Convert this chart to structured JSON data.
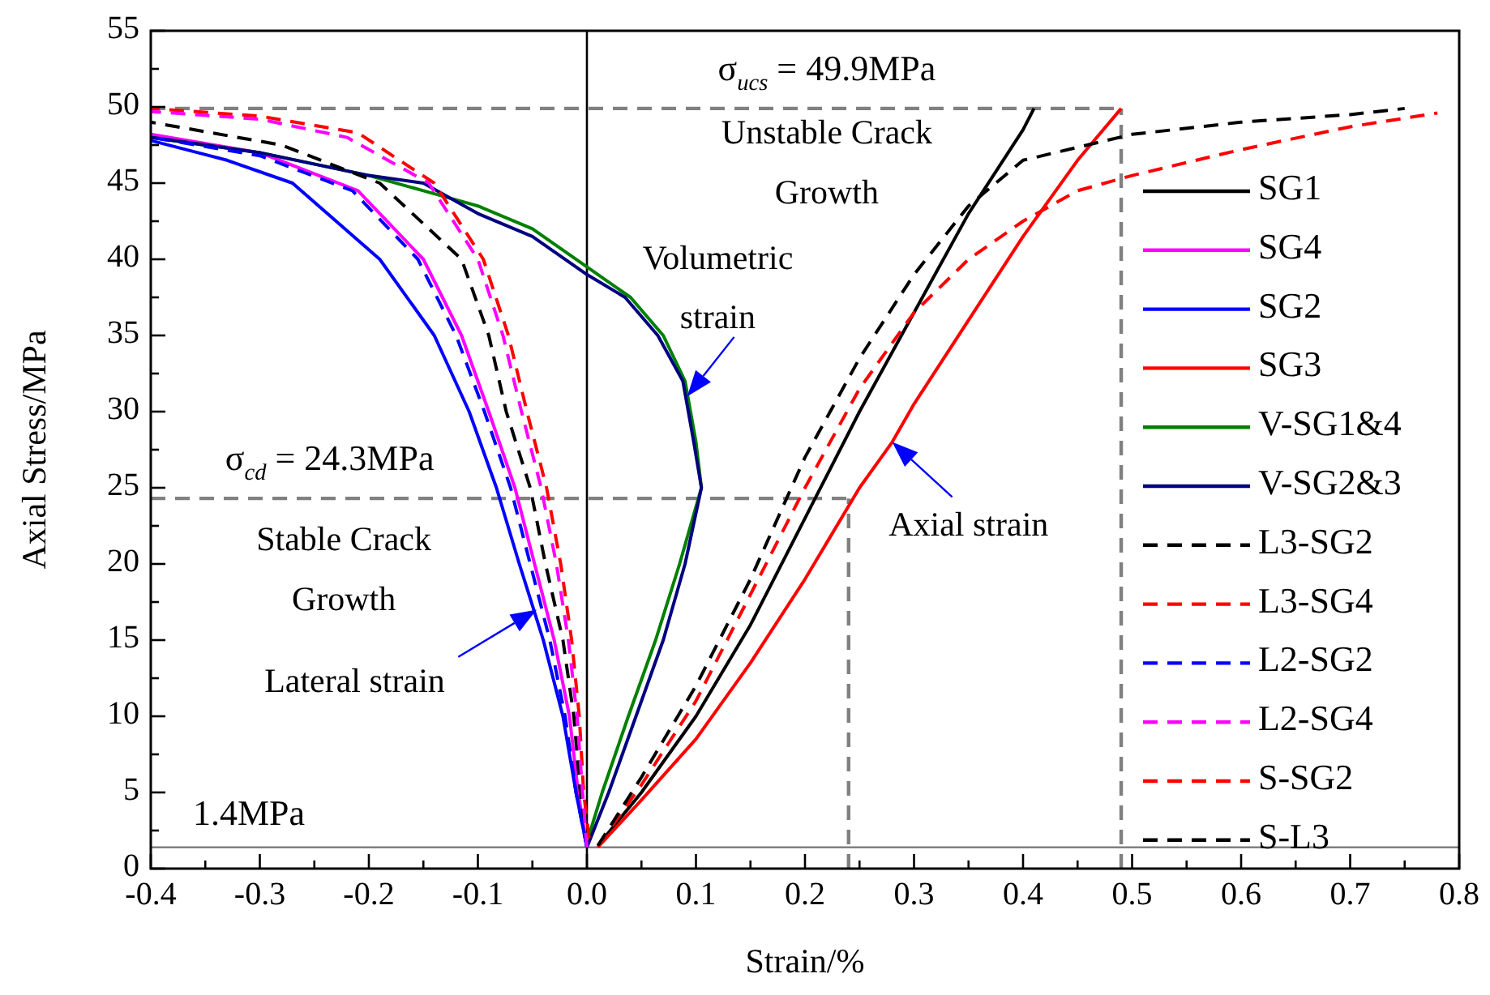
{
  "chart_data": {
    "type": "line",
    "xlabel": "Strain/%",
    "ylabel": "Axial Stress/MPa",
    "xlim": [
      -0.4,
      0.8
    ],
    "ylim": [
      0,
      55
    ],
    "xticks": [
      -0.4,
      {
        "value": -0.35,
        "label": null
      },
      -0.3,
      {
        "value": -0.25,
        "label": null
      },
      -0.2,
      {
        "value": -0.15,
        "label": null
      },
      -0.1,
      {
        "value": -0.05,
        "label": null
      },
      {
        "value": 0,
        "label": "0.0"
      },
      {
        "value": 0.05,
        "label": null
      },
      0.1,
      {
        "value": 0.15,
        "label": null
      },
      0.2,
      {
        "value": 0.25,
        "label": null
      },
      0.3,
      {
        "value": 0.35,
        "label": null
      },
      0.4,
      {
        "value": 0.45,
        "label": null
      },
      0.5,
      {
        "value": 0.55,
        "label": null
      },
      0.6,
      {
        "value": 0.65,
        "label": null
      },
      0.7,
      {
        "value": 0.75,
        "label": null
      },
      0.8
    ],
    "yticks": [
      0,
      {
        "value": 2.5,
        "label": null
      },
      5,
      {
        "value": 7.5,
        "label": null
      },
      10,
      {
        "value": 12.5,
        "label": null
      },
      15,
      {
        "value": 17.5,
        "label": null
      },
      20,
      {
        "value": 22.5,
        "label": null
      },
      25,
      {
        "value": 27.5,
        "label": null
      },
      30,
      {
        "value": 32.5,
        "label": null
      },
      35,
      {
        "value": 37.5,
        "label": null
      },
      40,
      {
        "value": 42.5,
        "label": null
      },
      45,
      {
        "value": 47.5,
        "label": null
      },
      50,
      {
        "value": 52.5,
        "label": null
      },
      55
    ],
    "grid": false,
    "legend": "right",
    "marker": "none",
    "series": [
      {
        "name": "SG1",
        "color": "#000000",
        "line_style": "solid",
        "x": [
          0.01,
          0.05,
          0.1,
          0.15,
          0.2,
          0.25,
          0.3,
          0.35,
          0.4,
          0.41
        ],
        "values": [
          1.5,
          5,
          10,
          16,
          23,
          30,
          36.5,
          43,
          48.5,
          49.9
        ]
      },
      {
        "name": "SG4",
        "color": "#ff00ff",
        "line_style": "solid",
        "x": [
          0,
          -0.008,
          -0.016,
          -0.03,
          -0.048,
          -0.066,
          -0.09,
          -0.115,
          -0.15,
          -0.21,
          -0.3,
          -0.4
        ],
        "values": [
          1.4,
          5,
          10,
          15,
          20,
          25,
          30,
          35,
          40,
          44.5,
          47,
          48.2
        ]
      },
      {
        "name": "SG2",
        "color": "#0000ff",
        "line_style": "solid",
        "x": [
          0,
          -0.01,
          -0.022,
          -0.04,
          -0.062,
          -0.083,
          -0.108,
          -0.14,
          -0.19,
          -0.27,
          -0.33,
          -0.4
        ],
        "values": [
          1.4,
          5,
          10,
          15,
          20,
          25,
          30,
          35,
          40,
          45,
          46.5,
          47.8
        ]
      },
      {
        "name": "SG3",
        "color": "#ff0000",
        "line_style": "solid",
        "x": [
          0.01,
          0.05,
          0.1,
          0.15,
          0.2,
          0.25,
          0.28,
          0.3,
          0.35,
          0.4,
          0.45,
          0.49
        ],
        "values": [
          1.4,
          4.5,
          8.5,
          13.5,
          19,
          25,
          28,
          30.5,
          36,
          41.5,
          46.5,
          49.9
        ]
      },
      {
        "name": "V-SG1&4",
        "color": "#008000",
        "line_style": "solid",
        "x": [
          0.002,
          0.014,
          0.038,
          0.063,
          0.085,
          0.105,
          0.1,
          0.09,
          0.07,
          0.04,
          0,
          -0.05,
          -0.1,
          -0.15,
          -0.2,
          -0.3,
          -0.4
        ],
        "values": [
          2.2,
          5,
          10,
          15,
          20,
          25,
          28,
          32,
          35,
          37.5,
          39.5,
          42,
          43.5,
          44.5,
          45.5,
          47,
          48
        ]
      },
      {
        "name": "V-SG2&3",
        "color": "#000080",
        "line_style": "solid",
        "x": [
          0,
          0.02,
          0.045,
          0.07,
          0.09,
          0.105,
          0.098,
          0.088,
          0.065,
          0.035,
          0,
          -0.05,
          -0.1,
          -0.15,
          -0.2,
          -0.3,
          -0.4
        ],
        "values": [
          1.4,
          5,
          10,
          15,
          20,
          25,
          28,
          32,
          35,
          37.5,
          39,
          41.5,
          43,
          45,
          45.5,
          47,
          48
        ]
      },
      {
        "name": "L3-SG2",
        "color": "#000000",
        "line_style": "dashed",
        "x": [
          0,
          -0.006,
          -0.012,
          -0.022,
          -0.038,
          -0.052,
          -0.074,
          -0.09,
          -0.115,
          -0.19,
          -0.28,
          -0.4
        ],
        "values": [
          1.4,
          5,
          10,
          15,
          20,
          25,
          30,
          35,
          40,
          45,
          47.5,
          49
        ]
      },
      {
        "name": "L3-SG4",
        "color": "#ff0000",
        "line_style": "dashed",
        "x": [
          0.002,
          -0.003,
          -0.007,
          -0.014,
          -0.024,
          -0.037,
          -0.055,
          -0.072,
          -0.095,
          -0.14,
          -0.21,
          -0.3,
          -0.4
        ],
        "values": [
          2,
          5,
          10,
          15,
          20,
          25,
          30,
          35,
          40,
          45,
          48.3,
          49.4,
          49.9
        ]
      },
      {
        "name": "L2-SG2",
        "color": "#0000ff",
        "line_style": "dashed",
        "x": [
          0,
          -0.01,
          -0.02,
          -0.034,
          -0.052,
          -0.07,
          -0.094,
          -0.12,
          -0.155,
          -0.215,
          -0.3,
          -0.4
        ],
        "values": [
          1.4,
          5,
          10,
          15,
          20,
          25,
          30,
          35,
          40,
          44.5,
          46.8,
          48
        ]
      },
      {
        "name": "L2-SG4",
        "color": "#ff00ff",
        "line_style": "dashed",
        "x": [
          0,
          -0.004,
          -0.009,
          -0.017,
          -0.028,
          -0.042,
          -0.06,
          -0.077,
          -0.1,
          -0.145,
          -0.22,
          -0.3,
          -0.4
        ],
        "values": [
          1.4,
          5,
          10,
          15,
          20,
          25,
          30,
          35,
          40,
          45,
          48,
          49.2,
          49.7
        ]
      },
      {
        "name": "S-SG2",
        "color": "#ff0000",
        "line_style": "dashed",
        "x": [
          0.01,
          0.05,
          0.1,
          0.15,
          0.2,
          0.25,
          0.3,
          0.35,
          0.4,
          0.45,
          0.5,
          0.6,
          0.7,
          0.78
        ],
        "values": [
          1.5,
          5.5,
          11,
          18,
          25,
          31.5,
          36.5,
          40,
          42.5,
          44.5,
          45.5,
          47.2,
          48.7,
          49.6
        ]
      },
      {
        "name": "S-L3",
        "color": "#000000",
        "line_style": "dashed",
        "x": [
          0.01,
          0.05,
          0.1,
          0.15,
          0.2,
          0.25,
          0.3,
          0.35,
          0.4,
          0.5,
          0.6,
          0.7,
          0.75
        ],
        "values": [
          1.5,
          6,
          12,
          19,
          27,
          33.5,
          39,
          43.5,
          46.5,
          48.2,
          49,
          49.5,
          49.9
        ]
      }
    ],
    "ref_lines": [
      {
        "axis": "y",
        "value": 49.9,
        "label": "σ$_{ucs}$ = 49.9MPa",
        "color": "#808080",
        "line_style": "dashed"
      },
      {
        "axis": "y",
        "value": 24.3,
        "label": "σ$_{cd}$ = 24.3MPa",
        "color": "#808080",
        "line_style": "dashed"
      },
      {
        "axis": "x",
        "value": 0.49,
        "color": "#808080",
        "line_style": "dashed"
      },
      {
        "axis": "x",
        "value": 0.24,
        "color": "#808080",
        "line_style": "dashed"
      },
      {
        "axis": "y",
        "value": 1.4,
        "label": "1.4MPa",
        "color": "#808080",
        "line_style": "solid"
      },
      {
        "axis": "x",
        "value": 0,
        "color": "#000000",
        "line_style": "solid"
      }
    ],
    "annotations": [
      "Unstable Crack Growth",
      {
        "text": "Volumetric strain",
        "x": 0.092,
        "y": 31
      },
      {
        "text": "Axial strain",
        "x": 0.28,
        "y": 28
      },
      "Stable Crack Growth",
      "Lateral strain"
    ]
  }
}
